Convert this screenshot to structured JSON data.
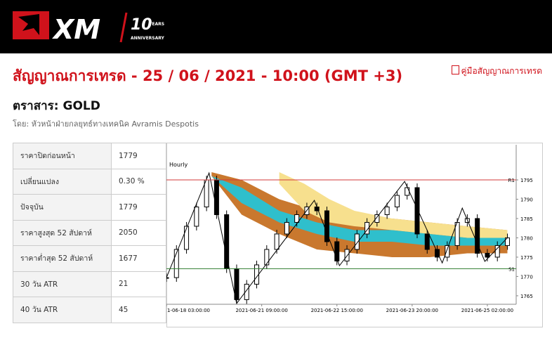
{
  "header": {
    "logo": "XM",
    "anniversary_number": "10",
    "anniversary_years": "YEARS",
    "anniversary_label": "ANNIVERSARY"
  },
  "title": "สัญญาณการเทรด - 25 / 06 / 2021 - 10:00 (GMT +3)",
  "guide_link": "คู่มือสัญญาณการเทรด",
  "instrument": "ตราสาร: GOLD",
  "author": "โดย: หัวหน้าฝ่ายกลยุทธ์ทางเทคนิค Avramis Despotis",
  "table": {
    "rows": [
      [
        "ราคาปิดก่อนหน้า",
        "1779"
      ],
      [
        "เปลี่ยนแปลง",
        "0.30 %"
      ],
      [
        "ปัจจุบัน",
        "1779"
      ],
      [
        "ราคาสูงสุด 52 สัปดาห์",
        "2050"
      ],
      [
        "ราคาต่ำสุด 52 สัปดาห์",
        "1677"
      ],
      [
        "30 วัน ATR",
        "21"
      ],
      [
        "40 วัน ATR",
        "45"
      ]
    ]
  },
  "chart": {
    "timeframe": "Hourly",
    "xlim": [
      0,
      139.5
    ],
    "ylim": [
      1762.8,
      1804.1
    ],
    "yticks": [
      1765,
      1770,
      1775,
      1780,
      1785,
      1790,
      1795
    ],
    "xticks": [
      {
        "value": 0,
        "label": "1-06-18 03:00:00"
      },
      {
        "value": 38,
        "label": "2021-06-21 09:00:00"
      },
      {
        "value": 68,
        "label": "2021-06-22 15:00:00"
      },
      {
        "value": 98,
        "label": "2021-06-23 20:00:00"
      },
      {
        "value": 128,
        "label": "2021-06-25 02:00:00"
      }
    ],
    "levels": [
      {
        "label": "R1",
        "value": 1795,
        "color": "#d33a3a"
      },
      {
        "label": "S1",
        "value": 1772,
        "color": "#2f7d2f"
      }
    ],
    "bands": [
      {
        "color": "#c9782e",
        "x": [
          18,
          30,
          45,
          60,
          75,
          90,
          105,
          120,
          136
        ],
        "upper": [
          1797,
          1795,
          1790,
          1787,
          1785,
          1785,
          1784,
          1783,
          1782
        ],
        "lower": [
          1796,
          1786,
          1781,
          1777,
          1776,
          1775,
          1775,
          1776,
          1776
        ]
      },
      {
        "color": "#f7e08e",
        "x": [
          45,
          55,
          65,
          75,
          90,
          105,
          120,
          136
        ],
        "upper": [
          1797,
          1794,
          1790,
          1787,
          1785,
          1784,
          1783,
          1782
        ],
        "lower": [
          1794,
          1787,
          1784,
          1783,
          1782,
          1781,
          1780,
          1779
        ]
      },
      {
        "color": "#2fbfcc",
        "x": [
          18,
          30,
          45,
          60,
          75,
          90,
          105,
          120,
          136
        ],
        "upper": [
          1796,
          1793,
          1787,
          1784,
          1782,
          1782,
          1781,
          1780,
          1780
        ],
        "lower": [
          1796,
          1789,
          1784,
          1781,
          1779,
          1779,
          1778,
          1778,
          1778
        ]
      }
    ],
    "closes": {
      "x": [
        0,
        4,
        8,
        12,
        16,
        20,
        24,
        28,
        32,
        36,
        40,
        44,
        48,
        52,
        56,
        60,
        64,
        68,
        72,
        76,
        80,
        84,
        88,
        92,
        96,
        100,
        104,
        108,
        112,
        116,
        120,
        124,
        128,
        132,
        136
      ],
      "values": [
        1769.7,
        1777,
        1783,
        1788,
        1795,
        1786,
        1772,
        1764,
        1768,
        1773,
        1777,
        1781,
        1784,
        1786,
        1788,
        1787,
        1779,
        1774,
        1777,
        1781,
        1784,
        1786,
        1788,
        1791,
        1793,
        1781,
        1777,
        1775,
        1778,
        1784,
        1785,
        1776,
        1775,
        1778,
        1780
      ]
    },
    "zigzag": {
      "x": [
        0,
        17,
        28,
        59,
        69,
        95,
        110,
        118,
        127,
        136
      ],
      "values": [
        1769.7,
        1796.8,
        1763,
        1789.7,
        1772.8,
        1794.6,
        1773.5,
        1787.7,
        1773.9,
        1780
      ]
    }
  }
}
